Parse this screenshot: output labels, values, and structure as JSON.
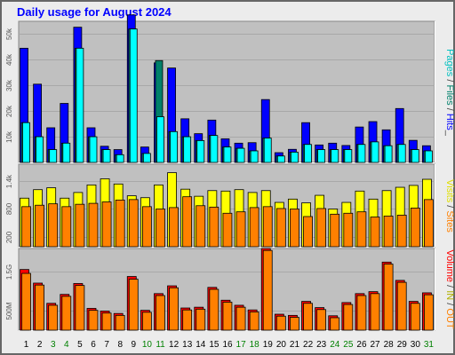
{
  "chart_data": [
    {
      "type": "bar",
      "title": "Daily usage for August 2024",
      "ylabel": "Pages / Files / Hits",
      "y_ticks": [
        "10k",
        "20k",
        "30k",
        "40k",
        "50k"
      ],
      "y_tick_values": [
        10000,
        20000,
        30000,
        40000,
        50000
      ],
      "ylim": [
        0,
        55000
      ],
      "categories": [
        "1",
        "2",
        "3",
        "4",
        "5",
        "6",
        "7",
        "8",
        "9",
        "10",
        "11",
        "12",
        "13",
        "14",
        "15",
        "16",
        "17",
        "18",
        "19",
        "20",
        "21",
        "22",
        "23",
        "24",
        "25",
        "26",
        "27",
        "28",
        "29",
        "30",
        "31"
      ],
      "series": [
        {
          "name": "Hits",
          "color": "#0000ff",
          "values": [
            44500,
            30500,
            13500,
            23000,
            52700,
            13500,
            6300,
            5000,
            57500,
            6000,
            38800,
            36800,
            17000,
            11200,
            16500,
            9200,
            7500,
            7700,
            24500,
            3800,
            5100,
            15500,
            6800,
            7500,
            6600,
            13800,
            15900,
            12700,
            21000,
            8600,
            6500
          ]
        },
        {
          "name": "Files",
          "color": "#00806b",
          "values": [
            15500,
            10000,
            5000,
            7500,
            44500,
            10000,
            5000,
            3000,
            52000,
            3500,
            39700,
            12000,
            10000,
            8500,
            10500,
            6000,
            5500,
            4500,
            9500,
            2500,
            4000,
            7000,
            5000,
            5000,
            5000,
            7000,
            8000,
            6500,
            7000,
            5000,
            4500
          ]
        },
        {
          "name": "Pages",
          "color": "#00ffff",
          "values": [
            15500,
            10000,
            5000,
            7500,
            44500,
            10000,
            5000,
            3000,
            52000,
            3500,
            17800,
            12000,
            10000,
            8500,
            10500,
            6000,
            5500,
            4500,
            9500,
            2500,
            4000,
            7000,
            5000,
            5000,
            5000,
            7000,
            8000,
            6500,
            7000,
            5000,
            4500
          ]
        }
      ]
    },
    {
      "type": "bar",
      "ylabel": "Visits / Sites",
      "y_ticks": [
        "200",
        "800",
        "1.4k"
      ],
      "y_tick_values": [
        200,
        800,
        1400
      ],
      "ylim": [
        0,
        1750
      ],
      "series": [
        {
          "name": "Sites",
          "color": "#ffff00",
          "values": [
            1030,
            1210,
            1250,
            1030,
            1150,
            1310,
            1440,
            1330,
            1080,
            1040,
            1310,
            1570,
            1220,
            1070,
            1190,
            1180,
            1210,
            1150,
            1190,
            940,
            1010,
            930,
            1090,
            800,
            940,
            1180,
            1010,
            1190,
            1260,
            1300,
            1430
          ]
        },
        {
          "name": "Visits",
          "color": "#ff8000",
          "values": [
            850,
            880,
            910,
            850,
            900,
            920,
            950,
            990,
            1000,
            850,
            800,
            830,
            1060,
            870,
            840,
            710,
            740,
            830,
            850,
            810,
            800,
            640,
            810,
            690,
            710,
            740,
            630,
            650,
            670,
            820,
            1000
          ]
        }
      ]
    },
    {
      "type": "bar",
      "ylabel": "Volume / IN / OUT",
      "y_ticks": [
        "500M",
        "1.5G"
      ],
      "y_tick_values": [
        500,
        1500
      ],
      "ylim": [
        0,
        2100
      ],
      "series": [
        {
          "name": "Volume",
          "color": "#ff0000",
          "values": [
            1560,
            1210,
            690,
            920,
            1200,
            560,
            490,
            430,
            1380,
            510,
            940,
            1140,
            570,
            590,
            1100,
            770,
            640,
            520,
            2100,
            410,
            380,
            740,
            580,
            370,
            710,
            940,
            990,
            1750,
            1280,
            740,
            960
          ]
        },
        {
          "name": "OUT",
          "color": "#ff8000",
          "values": [
            1460,
            1160,
            640,
            870,
            1150,
            510,
            440,
            380,
            1310,
            460,
            890,
            1090,
            520,
            540,
            1050,
            720,
            590,
            470,
            2050,
            360,
            330,
            690,
            530,
            320,
            660,
            890,
            940,
            1700,
            1230,
            690,
            910
          ]
        }
      ]
    }
  ],
  "day_labels": [
    "1",
    "2",
    "3",
    "4",
    "5",
    "6",
    "7",
    "8",
    "9",
    "10",
    "11",
    "12",
    "13",
    "14",
    "15",
    "16",
    "17",
    "18",
    "19",
    "20",
    "21",
    "22",
    "23",
    "24",
    "25",
    "26",
    "27",
    "28",
    "29",
    "30",
    "31"
  ],
  "weekend_days": [
    3,
    4,
    10,
    11,
    17,
    18,
    24,
    25,
    31
  ],
  "colors": {
    "title": "#0000ff",
    "plot_bg": "#c0c0c0",
    "frame_bg": "#ececec",
    "weekday_label": "#000000",
    "weekend_label": "#008000",
    "axis_text": "#555555"
  },
  "axis_labels": {
    "top": [
      {
        "text": "Pages",
        "color": "#00c0c0"
      },
      {
        "text": " / ",
        "color": "#404040"
      },
      {
        "text": "Files",
        "color": "#00806b"
      },
      {
        "text": " / ",
        "color": "#404040"
      },
      {
        "text": "Hits",
        "color": "#0000ff"
      },
      {
        "text": "_",
        "color": "#404040"
      }
    ],
    "middle": [
      {
        "text": "Visits",
        "color": "#e0e000"
      },
      {
        "text": " / ",
        "color": "#404040"
      },
      {
        "text": "Sites",
        "color": "#ff8000"
      }
    ],
    "bottom": [
      {
        "text": "Volume",
        "color": "#ff0000"
      },
      {
        "text": " / ",
        "color": "#404040"
      },
      {
        "text": "IN",
        "color": "#b0b000"
      },
      {
        "text": " / ",
        "color": "#404040"
      },
      {
        "text": "OUT",
        "color": "#ff8000"
      }
    ]
  }
}
